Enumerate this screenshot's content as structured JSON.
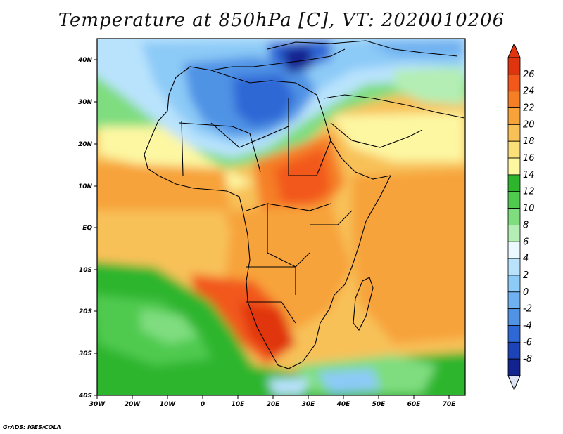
{
  "title": "Temperature at 850hPa [C], VT: 2020010206",
  "credit": "GrADS: IGES/COLA",
  "map": {
    "lon_range": [
      -30,
      75
    ],
    "lat_range": [
      -40,
      45
    ],
    "lon_ticks": [
      "30W",
      "20W",
      "10W",
      "0",
      "10E",
      "20E",
      "30E",
      "40E",
      "50E",
      "60E",
      "70E"
    ],
    "lat_ticks": [
      "40N",
      "30N",
      "20N",
      "10N",
      "EQ",
      "10S",
      "20S",
      "30S",
      "40S"
    ]
  },
  "colorbar": {
    "labels": [
      "26",
      "24",
      "22",
      "20",
      "18",
      "16",
      "14",
      "12",
      "10",
      "8",
      "6",
      "4",
      "2",
      "0",
      "-2",
      "-4",
      "-6",
      "-8"
    ],
    "colors": [
      "#e0340e",
      "#f2581b",
      "#f57f25",
      "#f7a33a",
      "#f8c158",
      "#fbe07a",
      "#fdf7a2",
      "#2eb52e",
      "#4fca4f",
      "#7fdd7f",
      "#b4eeb4",
      "#ecf8ff",
      "#b9e3fd",
      "#8ccaf7",
      "#6fb1f0",
      "#5093e5",
      "#2d68d5",
      "#1c44b8",
      "#122390"
    ],
    "top_color": "#e0340e",
    "bottom_color": "#dfe4f5"
  }
}
